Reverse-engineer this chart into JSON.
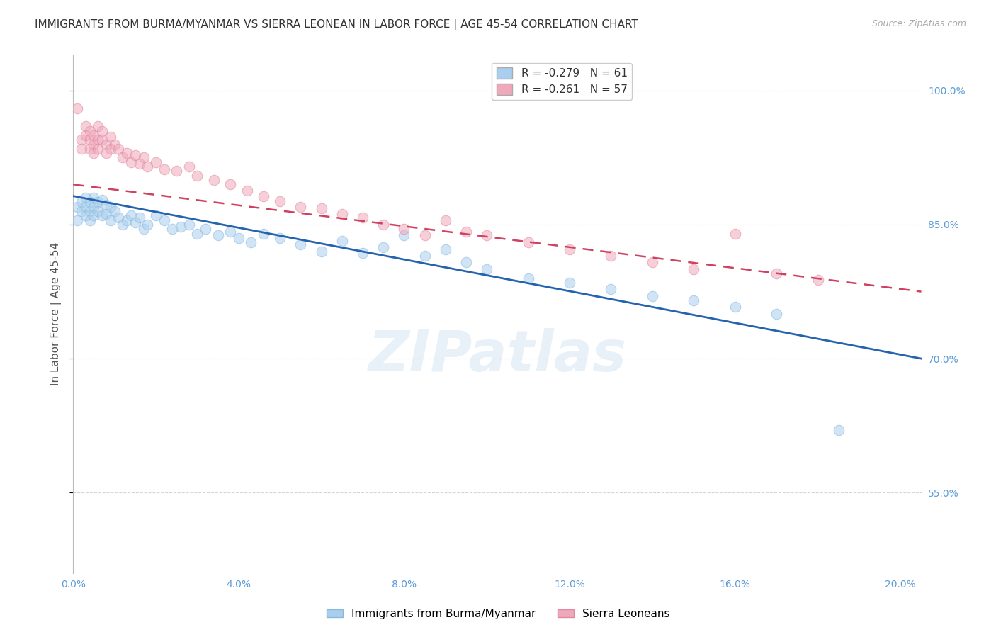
{
  "title": "IMMIGRANTS FROM BURMA/MYANMAR VS SIERRA LEONEAN IN LABOR FORCE | AGE 45-54 CORRELATION CHART",
  "source": "Source: ZipAtlas.com",
  "ylabel": "In Labor Force | Age 45-54",
  "xlim": [
    0.0,
    0.205
  ],
  "ylim": [
    0.46,
    1.04
  ],
  "xticks": [
    0.0,
    0.04,
    0.08,
    0.12,
    0.16,
    0.2
  ],
  "xtick_labels": [
    "0.0%",
    "4.0%",
    "8.0%",
    "12.0%",
    "16.0%",
    "20.0%"
  ],
  "yticks": [
    0.55,
    0.7,
    0.85,
    1.0
  ],
  "ytick_labels": [
    "55.0%",
    "70.0%",
    "85.0%",
    "100.0%"
  ],
  "grid_color": "#cccccc",
  "background_color": "#ffffff",
  "watermark_text": "ZIPatlas",
  "blue_color": "#aacfee",
  "pink_color": "#f0a8bb",
  "blue_edge_color": "#88b8e0",
  "pink_edge_color": "#e088a0",
  "blue_line_color": "#2563ae",
  "pink_line_color": "#d04060",
  "legend_blue_R": "-0.279",
  "legend_blue_N": "61",
  "legend_pink_R": "-0.261",
  "legend_pink_N": "57",
  "legend_label_blue": "Immigrants from Burma/Myanmar",
  "legend_label_pink": "Sierra Leoneans",
  "blue_line_x0": 0.0,
  "blue_line_x1": 0.205,
  "blue_line_y0": 0.882,
  "blue_line_y1": 0.7,
  "pink_line_x0": 0.0,
  "pink_line_x1": 0.205,
  "pink_line_y0": 0.895,
  "pink_line_y1": 0.775,
  "blue_scatter_x": [
    0.001,
    0.001,
    0.002,
    0.002,
    0.003,
    0.003,
    0.003,
    0.004,
    0.004,
    0.004,
    0.005,
    0.005,
    0.005,
    0.006,
    0.006,
    0.007,
    0.007,
    0.008,
    0.008,
    0.009,
    0.009,
    0.01,
    0.011,
    0.012,
    0.013,
    0.014,
    0.015,
    0.016,
    0.017,
    0.018,
    0.02,
    0.022,
    0.024,
    0.026,
    0.028,
    0.03,
    0.032,
    0.035,
    0.038,
    0.04,
    0.043,
    0.046,
    0.05,
    0.055,
    0.06,
    0.065,
    0.07,
    0.075,
    0.08,
    0.085,
    0.09,
    0.095,
    0.1,
    0.11,
    0.12,
    0.13,
    0.14,
    0.15,
    0.16,
    0.17,
    0.185
  ],
  "blue_scatter_y": [
    0.87,
    0.855,
    0.865,
    0.875,
    0.88,
    0.87,
    0.86,
    0.875,
    0.865,
    0.855,
    0.88,
    0.87,
    0.86,
    0.875,
    0.865,
    0.878,
    0.86,
    0.872,
    0.862,
    0.87,
    0.855,
    0.865,
    0.858,
    0.85,
    0.855,
    0.86,
    0.852,
    0.858,
    0.845,
    0.85,
    0.86,
    0.855,
    0.845,
    0.848,
    0.85,
    0.84,
    0.845,
    0.838,
    0.842,
    0.835,
    0.83,
    0.84,
    0.835,
    0.828,
    0.82,
    0.832,
    0.818,
    0.825,
    0.838,
    0.815,
    0.822,
    0.808,
    0.8,
    0.79,
    0.785,
    0.778,
    0.77,
    0.765,
    0.758,
    0.75,
    0.62
  ],
  "pink_scatter_x": [
    0.001,
    0.002,
    0.002,
    0.003,
    0.003,
    0.004,
    0.004,
    0.004,
    0.005,
    0.005,
    0.005,
    0.006,
    0.006,
    0.006,
    0.007,
    0.007,
    0.008,
    0.008,
    0.009,
    0.009,
    0.01,
    0.011,
    0.012,
    0.013,
    0.014,
    0.015,
    0.016,
    0.017,
    0.018,
    0.02,
    0.022,
    0.025,
    0.028,
    0.03,
    0.034,
    0.038,
    0.042,
    0.046,
    0.05,
    0.055,
    0.06,
    0.065,
    0.07,
    0.075,
    0.08,
    0.085,
    0.09,
    0.095,
    0.1,
    0.11,
    0.12,
    0.13,
    0.14,
    0.15,
    0.16,
    0.17,
    0.18
  ],
  "pink_scatter_y": [
    0.98,
    0.945,
    0.935,
    0.96,
    0.95,
    0.955,
    0.945,
    0.935,
    0.95,
    0.94,
    0.93,
    0.96,
    0.945,
    0.935,
    0.955,
    0.945,
    0.94,
    0.93,
    0.948,
    0.935,
    0.94,
    0.935,
    0.925,
    0.93,
    0.92,
    0.928,
    0.918,
    0.925,
    0.915,
    0.92,
    0.912,
    0.91,
    0.915,
    0.905,
    0.9,
    0.895,
    0.888,
    0.882,
    0.876,
    0.87,
    0.868,
    0.862,
    0.858,
    0.85,
    0.845,
    0.838,
    0.855,
    0.842,
    0.838,
    0.83,
    0.822,
    0.815,
    0.808,
    0.8,
    0.84,
    0.795,
    0.788
  ],
  "title_fontsize": 11,
  "source_fontsize": 9,
  "tick_label_color": "#5B9BD5",
  "tick_label_fontsize": 10,
  "ylabel_fontsize": 11,
  "scatter_size": 110,
  "scatter_alpha": 0.55
}
